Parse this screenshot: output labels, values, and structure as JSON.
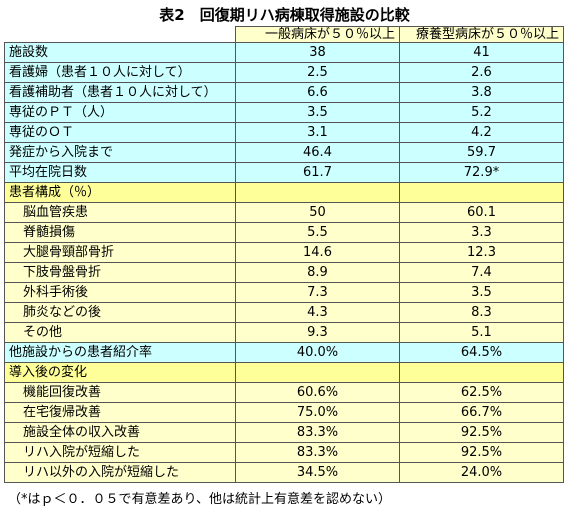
{
  "title": "表2　回復期リハ病棟取得施設の比較",
  "header": [
    "一般病床が５０％以上",
    "療養型病床が５０％以上"
  ],
  "groups": [
    {
      "rows": [
        [
          "施設数",
          "38",
          "41"
        ],
        [
          "看護婦（患者１０人に対して）",
          "2.5",
          "2.6"
        ],
        [
          "看護補助者（患者１０人に対して）",
          "6.6",
          "3.8"
        ],
        [
          "専従のＰＴ（人）",
          "3.5",
          "5.2"
        ],
        [
          "専従のＯＴ",
          "3.1",
          "4.2"
        ],
        [
          "発症から入院まで",
          "46.4",
          "59.7"
        ],
        [
          "平均在院日数",
          "61.7",
          "72.9*"
        ]
      ]
    },
    {
      "heading": "患者構成（％）",
      "rows": [
        [
          "脳血管疾患",
          "50",
          "60.1"
        ],
        [
          "脊髄損傷",
          "5.5",
          "3.3"
        ],
        [
          "大腿骨頸部骨折",
          "14.6",
          "12.3"
        ],
        [
          "下肢骨盤骨折",
          "8.9",
          "7.4"
        ],
        [
          "外科手術後",
          "7.3",
          "3.5"
        ],
        [
          "肺炎などの後",
          "4.3",
          "8.3"
        ],
        [
          "その他",
          "9.3",
          "5.1"
        ]
      ]
    },
    {
      "rows": [
        [
          "他施設からの患者紹介率",
          "40.0%",
          "64.5%"
        ]
      ]
    },
    {
      "heading": "導入後の変化",
      "rows": [
        [
          "機能回復改善",
          "60.6%",
          "62.5%"
        ],
        [
          "在宅復帰改善",
          "75.0%",
          "66.7%"
        ],
        [
          "施設全体の収入改善",
          "83.3%",
          "92.5%"
        ],
        [
          "リハ入院が短縮した",
          "83.3%",
          "92.5%"
        ],
        [
          "リハ以外の入院が短縮した",
          "34.5%",
          "24.0%"
        ]
      ]
    }
  ],
  "footnote": "（*はｐ＜０．０５で有意差あり、他は統計上有意差を認めない）"
}
